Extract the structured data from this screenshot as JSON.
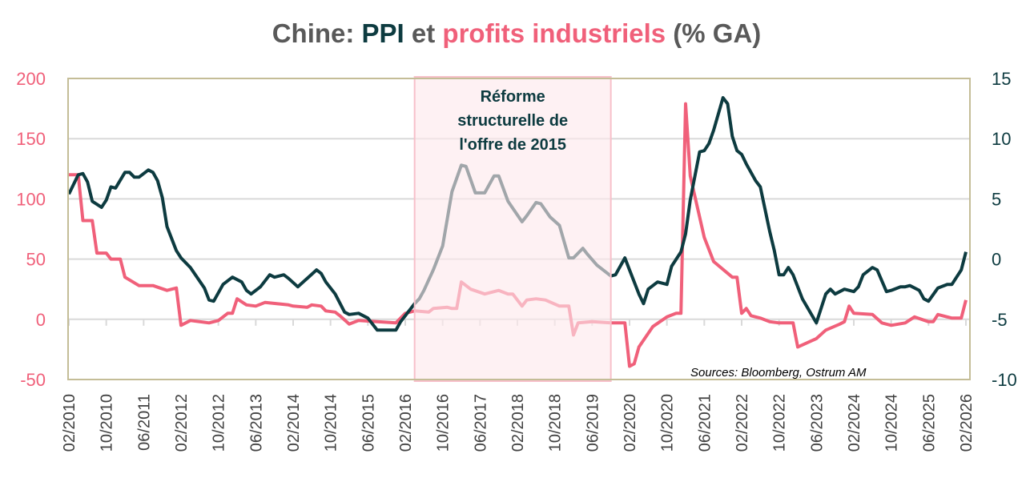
{
  "title": {
    "parts": [
      {
        "text": "Chine: ",
        "color": "#595959"
      },
      {
        "text": "PPI",
        "color": "#0d3b40"
      },
      {
        "text": " et ",
        "color": "#595959"
      },
      {
        "text": "profits industriels",
        "color": "#f0607a"
      },
      {
        "text": " (% GA)",
        "color": "#595959"
      }
    ]
  },
  "annotation": {
    "lines": [
      "Réforme",
      "structurelle de",
      "l'offre de 2015"
    ],
    "period": [
      "2016-04",
      "2019-10"
    ],
    "fill": "#fde8ec",
    "border": "#f7c0ca"
  },
  "source": "Sources: Bloomberg, Ostrum AM",
  "chart_data": {
    "type": "line",
    "title": "Chine: PPI et profits industriels (% GA)",
    "grid": true,
    "x_ticks": [
      "02/2010",
      "10/2010",
      "06/2011",
      "02/2012",
      "10/2012",
      "06/2013",
      "02/2014",
      "10/2014",
      "06/2015",
      "02/2016",
      "10/2016",
      "06/2017",
      "02/2018",
      "10/2018",
      "06/2019",
      "02/2020",
      "10/2020",
      "06/2021",
      "02/2022",
      "10/2022",
      "06/2023",
      "02/2024",
      "10/2024",
      "06/2025",
      "02/2026"
    ],
    "x_range": [
      "2010-02",
      "2026-02"
    ],
    "y_left": {
      "ticks": [
        200,
        150,
        100,
        50,
        0,
        -50
      ],
      "range": [
        -50,
        200
      ],
      "color": "#f0607a"
    },
    "y_right": {
      "ticks": [
        15,
        10,
        5,
        0,
        -5,
        -10
      ],
      "range": [
        -10,
        15
      ],
      "color": "#0d3b40"
    },
    "series": [
      {
        "name": "profits industriels",
        "axis": "left",
        "color": "#f0607a",
        "x": [
          "2010-02",
          "2010-04",
          "2010-05",
          "2010-07",
          "2010-08",
          "2010-10",
          "2010-11",
          "2011-01",
          "2011-02",
          "2011-05",
          "2011-08",
          "2011-11",
          "2012-01",
          "2012-02",
          "2012-04",
          "2012-08",
          "2012-10",
          "2012-12",
          "2013-01",
          "2013-02",
          "2013-04",
          "2013-06",
          "2013-08",
          "2014-01",
          "2014-02",
          "2014-05",
          "2014-06",
          "2014-08",
          "2014-09",
          "2014-11",
          "2014-12",
          "2015-02",
          "2015-04",
          "2015-12",
          "2016-02",
          "2016-04",
          "2016-07",
          "2016-08",
          "2016-11",
          "2016-12",
          "2017-01",
          "2017-02",
          "2017-04",
          "2017-07",
          "2017-10",
          "2017-12",
          "2018-01",
          "2018-03",
          "2018-04",
          "2018-06",
          "2018-08",
          "2018-11",
          "2019-01",
          "2019-02",
          "2019-03",
          "2019-06",
          "2019-10",
          "2020-01",
          "2020-02",
          "2020-03",
          "2020-04",
          "2020-07",
          "2020-10",
          "2020-12",
          "2021-01",
          "2021-02",
          "2021-03",
          "2021-06",
          "2021-08",
          "2021-12",
          "2022-01",
          "2022-02",
          "2022-03",
          "2022-04",
          "2022-06",
          "2022-08",
          "2022-10",
          "2023-01",
          "2023-02",
          "2023-06",
          "2023-08",
          "2023-11",
          "2023-12",
          "2024-01",
          "2024-02",
          "2024-06",
          "2024-08",
          "2024-10",
          "2025-01",
          "2025-03",
          "2025-06",
          "2025-07",
          "2025-08",
          "2025-11",
          "2026-01",
          "2026-02"
        ],
        "y": [
          120,
          120,
          82,
          82,
          55,
          55,
          50,
          50,
          35,
          28,
          28,
          24,
          26,
          -5,
          -1,
          -3,
          -1,
          5,
          5,
          17,
          12,
          11,
          14,
          12,
          11,
          10,
          12,
          11,
          7,
          6,
          3,
          -4,
          -1,
          -3,
          5,
          7,
          6,
          9,
          10,
          9,
          9,
          31,
          25,
          21,
          24,
          21,
          21,
          11,
          16,
          17,
          16,
          11,
          11,
          -13,
          -3,
          -2,
          -3,
          -3,
          -39,
          -37,
          -23,
          -6,
          2,
          5,
          5,
          179,
          119,
          68,
          48,
          35,
          35,
          5,
          9,
          3,
          1,
          -2,
          -3,
          -3,
          -23,
          -16,
          -9,
          -4,
          -2,
          11,
          5,
          4,
          -3,
          -5,
          -3,
          2,
          -2,
          -2,
          4,
          1,
          1,
          16
        ]
      },
      {
        "name": "PPI",
        "axis": "right",
        "color": "#0d3b40",
        "x": [
          "2010-02",
          "2010-04",
          "2010-05",
          "2010-06",
          "2010-07",
          "2010-09",
          "2010-10",
          "2010-11",
          "2010-12",
          "2011-02",
          "2011-03",
          "2011-04",
          "2011-05",
          "2011-07",
          "2011-08",
          "2011-09",
          "2011-10",
          "2011-11",
          "2012-01",
          "2012-02",
          "2012-04",
          "2012-07",
          "2012-08",
          "2012-09",
          "2012-11",
          "2013-01",
          "2013-03",
          "2013-04",
          "2013-05",
          "2013-07",
          "2013-09",
          "2013-10",
          "2013-12",
          "2014-01",
          "2014-03",
          "2014-05",
          "2014-07",
          "2014-08",
          "2014-09",
          "2014-11",
          "2015-01",
          "2015-02",
          "2015-04",
          "2015-06",
          "2015-08",
          "2015-12",
          "2016-01",
          "2016-04",
          "2016-05",
          "2016-06",
          "2016-08",
          "2016-10",
          "2016-12",
          "2017-02",
          "2017-03",
          "2017-05",
          "2017-07",
          "2017-09",
          "2017-10",
          "2017-12",
          "2018-03",
          "2018-04",
          "2018-06",
          "2018-07",
          "2018-09",
          "2018-11",
          "2019-01",
          "2019-02",
          "2019-04",
          "2019-05",
          "2019-07",
          "2019-10",
          "2019-11",
          "2020-01",
          "2020-02",
          "2020-04",
          "2020-05",
          "2020-06",
          "2020-08",
          "2020-10",
          "2020-11",
          "2021-01",
          "2021-02",
          "2021-03",
          "2021-05",
          "2021-06",
          "2021-07",
          "2021-08",
          "2021-10",
          "2021-11",
          "2021-12",
          "2022-01",
          "2022-02",
          "2022-03",
          "2022-05",
          "2022-06",
          "2022-08",
          "2022-09",
          "2022-10",
          "2022-11",
          "2022-12",
          "2023-01",
          "2023-03",
          "2023-06",
          "2023-08",
          "2023-09",
          "2023-10",
          "2023-12",
          "2024-02",
          "2024-03",
          "2024-04",
          "2024-06",
          "2024-07",
          "2024-09",
          "2024-10",
          "2024-12",
          "2025-01",
          "2025-02",
          "2025-04",
          "2025-05",
          "2025-06",
          "2025-08",
          "2025-10",
          "2025-11",
          "2025-12",
          "2026-01",
          "2026-02"
        ],
        "y": [
          5.4,
          7.0,
          7.1,
          6.4,
          4.8,
          4.3,
          4.9,
          6.0,
          5.9,
          7.2,
          7.2,
          6.8,
          6.8,
          7.4,
          7.2,
          6.5,
          5.1,
          2.7,
          0.7,
          0.1,
          -0.7,
          -2.4,
          -3.4,
          -3.5,
          -2.1,
          -1.5,
          -1.9,
          -2.6,
          -2.9,
          -2.3,
          -1.3,
          -1.5,
          -1.3,
          -1.6,
          -2.3,
          -1.6,
          -0.9,
          -1.2,
          -1.9,
          -2.9,
          -4.4,
          -4.6,
          -4.5,
          -4.9,
          -5.9,
          -5.9,
          -5.2,
          -3.7,
          -3.3,
          -2.6,
          -0.9,
          1.1,
          5.6,
          7.8,
          7.7,
          5.5,
          5.5,
          6.9,
          6.9,
          4.8,
          3.1,
          3.6,
          4.7,
          4.6,
          3.5,
          2.8,
          0.1,
          0.1,
          0.9,
          0.4,
          -0.5,
          -1.4,
          -1.3,
          0.1,
          -0.9,
          -2.9,
          -3.7,
          -2.5,
          -1.9,
          -2.1,
          -0.6,
          0.6,
          2.1,
          4.9,
          8.9,
          9.0,
          9.6,
          10.7,
          13.4,
          12.9,
          10.2,
          9.0,
          8.7,
          7.9,
          6.5,
          6.0,
          2.3,
          0.7,
          -1.3,
          -1.3,
          -0.7,
          -1.3,
          -3.3,
          -5.3,
          -2.9,
          -2.5,
          -2.9,
          -2.5,
          -2.7,
          -2.3,
          -1.3,
          -0.7,
          -0.9,
          -2.7,
          -2.6,
          -2.3,
          -2.3,
          -2.2,
          -2.6,
          -3.3,
          -3.5,
          -2.4,
          -2.1,
          -2.1,
          -1.5,
          -0.9,
          0.6
        ]
      }
    ]
  }
}
